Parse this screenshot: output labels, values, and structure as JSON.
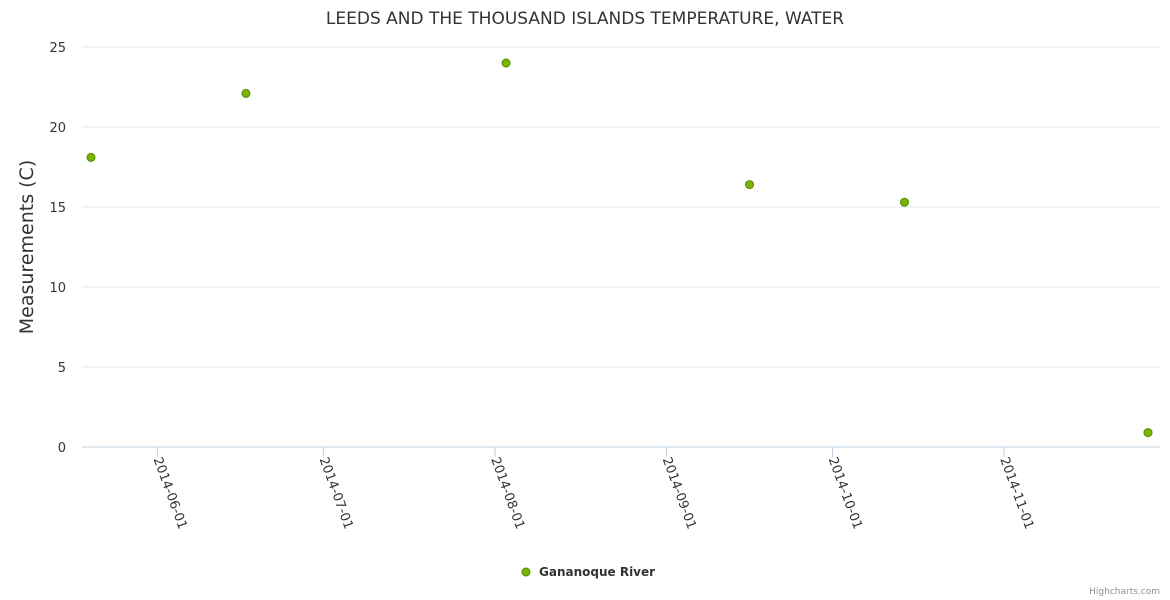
{
  "chart_data": {
    "type": "scatter",
    "title": "LEEDS AND THE THOUSAND ISLANDS TEMPERATURE, WATER",
    "xlabel": "",
    "ylabel": "Measurements (C)",
    "ylim": [
      0,
      25
    ],
    "yticks": [
      "0",
      "5",
      "10",
      "15",
      "20",
      "25"
    ],
    "xlim": [
      "2014-05-20",
      "2014-11-27"
    ],
    "xticks": [
      "2014-06-01",
      "2014-07-01",
      "2014-08-01",
      "2014-09-01",
      "2014-10-01",
      "2014-11-01"
    ],
    "grid": true,
    "legend_position": "bottom-center",
    "series": [
      {
        "name": "Gananoque River",
        "color": "#7cb500",
        "points": [
          {
            "x": "2014-05-20",
            "y": 18.1
          },
          {
            "x": "2014-06-17",
            "y": 22.1
          },
          {
            "x": "2014-08-03",
            "y": 24.0
          },
          {
            "x": "2014-09-16",
            "y": 16.4
          },
          {
            "x": "2014-10-14",
            "y": 15.3
          },
          {
            "x": "2014-11-27",
            "y": 0.9
          }
        ]
      }
    ]
  },
  "credits": "Highcharts.com"
}
